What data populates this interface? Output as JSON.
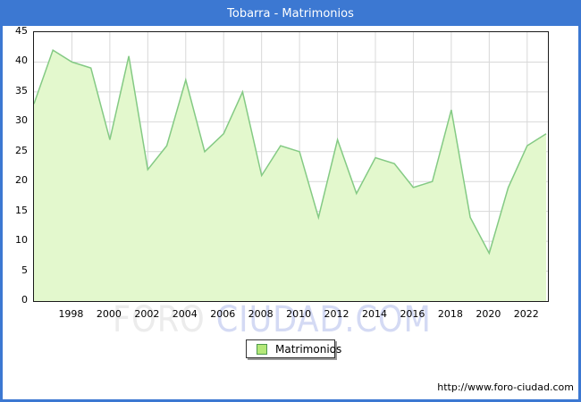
{
  "header": {
    "title": "Tobarra - Matrimonios"
  },
  "legend": {
    "label": "Matrimonios"
  },
  "watermark": {
    "part1": "FORO",
    "part2": "CIUDAD.COM"
  },
  "footer": {
    "url": "http://www.foro-ciudad.com"
  },
  "colors": {
    "accent_blue": "#3c78d2",
    "area_fill": "#e3f8cd",
    "line_green": "#84ca84",
    "legend_swatch": "#b4e878",
    "legend_swatch_border": "#4e9a4e",
    "gridline": "#d8d8d8",
    "plot_border": "#1a1a1a"
  },
  "chart_data": {
    "type": "area",
    "title": "Tobarra - Matrimonios",
    "xlabel": "",
    "ylabel": "",
    "legend_entries": [
      "Matrimonios"
    ],
    "legend_position": "bottom-center",
    "grid": true,
    "ylim": [
      0,
      45
    ],
    "y_ticks": [
      0,
      5,
      10,
      15,
      20,
      25,
      30,
      35,
      40,
      45
    ],
    "x_ticks": [
      1998,
      2000,
      2002,
      2004,
      2006,
      2008,
      2010,
      2012,
      2014,
      2016,
      2018,
      2020,
      2022
    ],
    "x": [
      1996,
      1997,
      1998,
      1999,
      2000,
      2001,
      2002,
      2003,
      2004,
      2005,
      2006,
      2007,
      2008,
      2009,
      2010,
      2011,
      2012,
      2013,
      2014,
      2015,
      2016,
      2017,
      2018,
      2019,
      2020,
      2021,
      2022,
      2023
    ],
    "values": [
      33,
      42,
      40,
      39,
      27,
      41,
      22,
      26,
      37,
      25,
      28,
      35,
      21,
      26,
      25,
      14,
      27,
      18,
      24,
      23,
      19,
      20,
      32,
      14,
      8,
      19,
      26,
      28
    ]
  }
}
